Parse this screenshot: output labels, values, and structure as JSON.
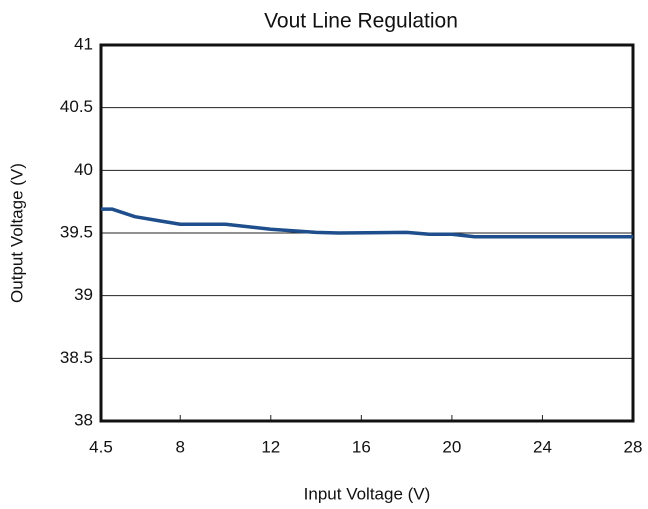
{
  "chart_data": {
    "type": "line",
    "title": "Vout Line Regulation",
    "x_label": "Input Voltage (V)",
    "y_label": "Output Voltage (V)",
    "x": [
      4.5,
      5,
      6,
      7,
      8,
      10,
      12,
      14,
      15,
      18,
      19,
      20,
      21,
      28
    ],
    "series": [
      {
        "name": "Vout",
        "color": "#1f4e8c",
        "values": [
          39.69,
          39.69,
          39.63,
          39.6,
          39.57,
          39.57,
          39.53,
          39.505,
          39.5,
          39.505,
          39.49,
          39.49,
          39.47,
          39.47
        ]
      }
    ],
    "xlim": [
      4.5,
      28
    ],
    "xticks": [
      4.5,
      8,
      12,
      16,
      20,
      24,
      28
    ],
    "ylim": [
      38,
      41
    ],
    "yticks": [
      38,
      38.5,
      39,
      39.5,
      40,
      40.5,
      41
    ],
    "grid": true
  }
}
